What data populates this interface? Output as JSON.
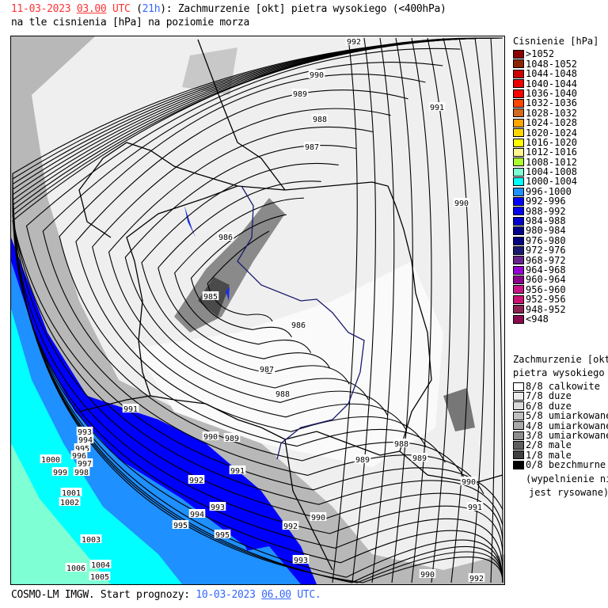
{
  "header": {
    "date": "11-03-2023",
    "time": "03.00",
    "tz": "UTC",
    "lead_open": "(",
    "lead": "21h",
    "lead_close": "):",
    "title": "Zachmurzenie [okt] pietra wysokiego (<400hPa)",
    "subtitle": "na tle cisnienia [hPa] na poziomie morza"
  },
  "pressure_legend": {
    "title": "Cisnienie [hPa]",
    "items": [
      {
        "label": ">1052",
        "color": "#8b0000"
      },
      {
        "label": "1048-1052",
        "color": "#8b2500"
      },
      {
        "label": "1044-1048",
        "color": "#cd0000"
      },
      {
        "label": "1040-1044",
        "color": "#ee0000"
      },
      {
        "label": "1036-1040",
        "color": "#ff0000"
      },
      {
        "label": "1032-1036",
        "color": "#ff4500"
      },
      {
        "label": "1028-1032",
        "color": "#d2691e"
      },
      {
        "label": "1024-1028",
        "color": "#ffa500"
      },
      {
        "label": "1020-1024",
        "color": "#ffd700"
      },
      {
        "label": "1016-1020",
        "color": "#ffff00"
      },
      {
        "label": "1012-1016",
        "color": "#fff68f"
      },
      {
        "label": "1008-1012",
        "color": "#adff2f"
      },
      {
        "label": "1004-1008",
        "color": "#7fffd4"
      },
      {
        "label": "1000-1004",
        "color": "#00ffff"
      },
      {
        "label": "996-1000",
        "color": "#1e90ff"
      },
      {
        "label": "992-996",
        "color": "#0000ff"
      },
      {
        "label": "988-992",
        "color": "#0000ee"
      },
      {
        "label": "984-988",
        "color": "#0000cd"
      },
      {
        "label": "980-984",
        "color": "#00008b"
      },
      {
        "label": "976-980",
        "color": "#000080"
      },
      {
        "label": "972-976",
        "color": "#191970"
      },
      {
        "label": "968-972",
        "color": "#68228b"
      },
      {
        "label": "964-968",
        "color": "#9400d3"
      },
      {
        "label": "960-964",
        "color": "#8b008b"
      },
      {
        "label": "956-960",
        "color": "#c71585"
      },
      {
        "label": "952-956",
        "color": "#cd1076"
      },
      {
        "label": "948-952",
        "color": "#8b2252"
      },
      {
        "label": "<948",
        "color": "#8b0a50"
      }
    ]
  },
  "cloud_legend": {
    "title1": "Zachmurzenie [okt]",
    "title2": "pietra wysokiego",
    "items": [
      {
        "label": "8/8 calkowite",
        "color": "#ffffff"
      },
      {
        "label": "7/8 duze",
        "color": "#ebebeb"
      },
      {
        "label": "6/8 duze",
        "color": "#d9d9d9"
      },
      {
        "label": "5/8 umiarkowane",
        "color": "#bfbfbf"
      },
      {
        "label": "4/8 umiarkowane",
        "color": "#a9a9a9"
      },
      {
        "label": "3/8 umiarkowane",
        "color": "#8c8c8c"
      },
      {
        "label": "2/8 male",
        "color": "#5e5e5e"
      },
      {
        "label": "1/8 male",
        "color": "#404040"
      },
      {
        "label": "0/8 bezchmurne",
        "color": "#000000"
      }
    ],
    "note1": "(wypelnienie nie",
    "note2": "jest rysowane)"
  },
  "isobar_labels": [
    "992",
    "990",
    "989",
    "991",
    "988",
    "987",
    "990",
    "986",
    "985",
    "986",
    "987",
    "988",
    "991",
    "993",
    "994",
    "995",
    "996",
    "997",
    "998",
    "1000",
    "999",
    "990",
    "989",
    "988",
    "989",
    "989",
    "991",
    "992",
    "993",
    "994",
    "995",
    "995",
    "992",
    "990",
    "990",
    "991",
    "1001",
    "1002",
    "1003",
    "1006",
    "1004",
    "1005",
    "993",
    "990",
    "992"
  ],
  "footer": {
    "text": "COSMO-LM IMGW. Start prognozy:",
    "date": "10-03-2023",
    "time": "06.00",
    "tz": "UTC."
  }
}
